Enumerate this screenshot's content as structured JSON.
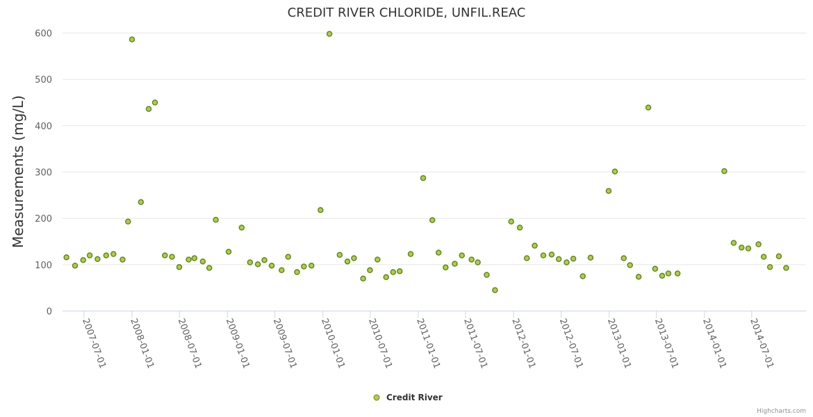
{
  "chart_data": {
    "type": "scatter",
    "title": "CREDIT RIVER CHLORIDE, UNFIL.REAC",
    "xlabel": "",
    "ylabel": "Measurements (mg/L)",
    "ylim": [
      0,
      600
    ],
    "y_ticks": [
      0,
      100,
      200,
      300,
      400,
      500,
      600
    ],
    "x_tick_labels": [
      "2007-07-01",
      "2008-01-01",
      "2008-07-01",
      "2009-01-01",
      "2009-07-01",
      "2010-01-01",
      "2010-07-01",
      "2011-01-01",
      "2011-07-01",
      "2012-01-01",
      "2012-07-01",
      "2013-01-01",
      "2013-07-01",
      "2014-01-01",
      "2014-07-01"
    ],
    "xlim": [
      "2007-04-10",
      "2015-01-25"
    ],
    "grid": true,
    "legend": "bottom-center",
    "series": [
      {
        "name": "Credit River",
        "color": "#7cb342",
        "points": [
          {
            "x": "2007-04-25",
            "y": 116
          },
          {
            "x": "2007-05-28",
            "y": 98
          },
          {
            "x": "2007-06-28",
            "y": 110
          },
          {
            "x": "2007-07-23",
            "y": 120
          },
          {
            "x": "2007-08-22",
            "y": 112
          },
          {
            "x": "2007-09-24",
            "y": 120
          },
          {
            "x": "2007-10-22",
            "y": 123
          },
          {
            "x": "2007-11-26",
            "y": 111
          },
          {
            "x": "2007-12-17",
            "y": 193
          },
          {
            "x": "2008-01-01",
            "y": 586
          },
          {
            "x": "2008-02-04",
            "y": 235
          },
          {
            "x": "2008-03-05",
            "y": 436
          },
          {
            "x": "2008-03-29",
            "y": 450
          },
          {
            "x": "2008-05-06",
            "y": 120
          },
          {
            "x": "2008-06-02",
            "y": 117
          },
          {
            "x": "2008-06-30",
            "y": 95
          },
          {
            "x": "2008-08-05",
            "y": 111
          },
          {
            "x": "2008-08-27",
            "y": 114
          },
          {
            "x": "2008-09-28",
            "y": 107
          },
          {
            "x": "2008-10-23",
            "y": 93
          },
          {
            "x": "2008-11-17",
            "y": 197
          },
          {
            "x": "2009-01-05",
            "y": 128
          },
          {
            "x": "2009-02-24",
            "y": 180
          },
          {
            "x": "2009-03-28",
            "y": 105
          },
          {
            "x": "2009-04-27",
            "y": 101
          },
          {
            "x": "2009-05-22",
            "y": 110
          },
          {
            "x": "2009-06-19",
            "y": 98
          },
          {
            "x": "2009-07-27",
            "y": 88
          },
          {
            "x": "2009-08-21",
            "y": 117
          },
          {
            "x": "2009-09-24",
            "y": 84
          },
          {
            "x": "2009-10-20",
            "y": 96
          },
          {
            "x": "2009-11-18",
            "y": 98
          },
          {
            "x": "2009-12-23",
            "y": 218
          },
          {
            "x": "2010-01-26",
            "y": 598
          },
          {
            "x": "2010-03-06",
            "y": 121
          },
          {
            "x": "2010-04-05",
            "y": 107
          },
          {
            "x": "2010-04-30",
            "y": 114
          },
          {
            "x": "2010-06-04",
            "y": 70
          },
          {
            "x": "2010-06-30",
            "y": 88
          },
          {
            "x": "2010-07-29",
            "y": 111
          },
          {
            "x": "2010-08-31",
            "y": 73
          },
          {
            "x": "2010-09-27",
            "y": 84
          },
          {
            "x": "2010-10-22",
            "y": 86
          },
          {
            "x": "2010-12-03",
            "y": 123
          },
          {
            "x": "2011-01-20",
            "y": 287
          },
          {
            "x": "2011-02-24",
            "y": 196
          },
          {
            "x": "2011-03-20",
            "y": 126
          },
          {
            "x": "2011-04-16",
            "y": 94
          },
          {
            "x": "2011-05-21",
            "y": 102
          },
          {
            "x": "2011-06-17",
            "y": 120
          },
          {
            "x": "2011-07-24",
            "y": 111
          },
          {
            "x": "2011-08-17",
            "y": 105
          },
          {
            "x": "2011-09-20",
            "y": 78
          },
          {
            "x": "2011-10-22",
            "y": 45
          },
          {
            "x": "2011-12-23",
            "y": 193
          },
          {
            "x": "2012-01-25",
            "y": 180
          },
          {
            "x": "2012-02-21",
            "y": 114
          },
          {
            "x": "2012-03-22",
            "y": 141
          },
          {
            "x": "2012-04-24",
            "y": 120
          },
          {
            "x": "2012-05-26",
            "y": 122
          },
          {
            "x": "2012-06-22",
            "y": 112
          },
          {
            "x": "2012-07-22",
            "y": 105
          },
          {
            "x": "2012-08-17",
            "y": 113
          },
          {
            "x": "2012-09-22",
            "y": 75
          },
          {
            "x": "2012-10-22",
            "y": 115
          },
          {
            "x": "2012-12-30",
            "y": 259
          },
          {
            "x": "2013-01-23",
            "y": 301
          },
          {
            "x": "2013-02-26",
            "y": 114
          },
          {
            "x": "2013-03-22",
            "y": 99
          },
          {
            "x": "2013-04-24",
            "y": 74
          },
          {
            "x": "2013-05-31",
            "y": 439
          },
          {
            "x": "2013-06-26",
            "y": 91
          },
          {
            "x": "2013-07-23",
            "y": 76
          },
          {
            "x": "2013-08-16",
            "y": 81
          },
          {
            "x": "2013-09-20",
            "y": 81
          },
          {
            "x": "2014-03-18",
            "y": 302
          },
          {
            "x": "2014-04-23",
            "y": 147
          },
          {
            "x": "2014-05-23",
            "y": 137
          },
          {
            "x": "2014-06-18",
            "y": 135
          },
          {
            "x": "2014-07-27",
            "y": 144
          },
          {
            "x": "2014-08-16",
            "y": 117
          },
          {
            "x": "2014-09-09",
            "y": 95
          },
          {
            "x": "2014-10-13",
            "y": 118
          },
          {
            "x": "2014-11-10",
            "y": 93
          }
        ]
      }
    ]
  },
  "credits": "Highcharts.com"
}
